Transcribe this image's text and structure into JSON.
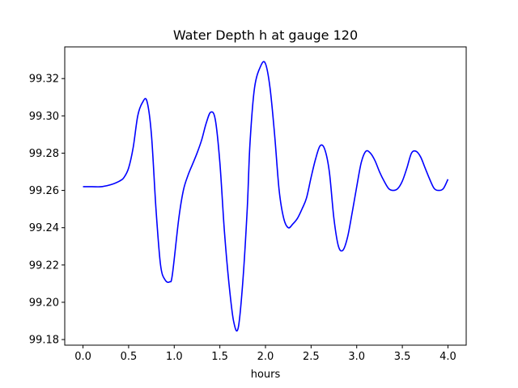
{
  "chart_data": {
    "type": "line",
    "title": "Water Depth h at gauge 120",
    "xlabel": "hours",
    "ylabel": "",
    "xlim": [
      -0.2,
      4.2
    ],
    "ylim": [
      99.177,
      99.337
    ],
    "xticks": [
      0.0,
      0.5,
      1.0,
      1.5,
      2.0,
      2.5,
      3.0,
      3.5,
      4.0
    ],
    "xtick_labels": [
      "0.0",
      "0.5",
      "1.0",
      "1.5",
      "2.0",
      "2.5",
      "3.0",
      "3.5",
      "4.0"
    ],
    "yticks": [
      99.18,
      99.2,
      99.22,
      99.24,
      99.26,
      99.28,
      99.3,
      99.32
    ],
    "ytick_labels": [
      "99.18",
      "99.20",
      "99.22",
      "99.24",
      "99.26",
      "99.28",
      "99.30",
      "99.32"
    ],
    "grid": false,
    "line_color": "#0000ff",
    "series": [
      {
        "x": [
          0.0,
          0.1,
          0.2,
          0.3,
          0.4,
          0.45,
          0.5,
          0.55,
          0.6,
          0.65,
          0.7,
          0.75,
          0.8,
          0.85,
          0.9,
          0.95,
          0.98,
          1.05,
          1.1,
          1.15,
          1.2,
          1.25,
          1.3,
          1.35,
          1.4,
          1.45,
          1.5,
          1.55,
          1.6,
          1.65,
          1.7,
          1.75,
          1.8,
          1.83,
          1.88,
          1.95,
          2.0,
          2.05,
          2.1,
          2.15,
          2.2,
          2.25,
          2.3,
          2.35,
          2.4,
          2.45,
          2.5,
          2.55,
          2.6,
          2.65,
          2.7,
          2.75,
          2.8,
          2.85,
          2.9,
          2.95,
          3.0,
          3.05,
          3.1,
          3.15,
          3.2,
          3.25,
          3.3,
          3.35,
          3.4,
          3.45,
          3.5,
          3.55,
          3.6,
          3.65,
          3.7,
          3.75,
          3.8,
          3.85,
          3.9,
          3.95,
          4.0
        ],
        "y": [
          99.262,
          99.262,
          99.262,
          99.263,
          99.265,
          99.267,
          99.272,
          99.283,
          99.3,
          99.307,
          99.308,
          99.29,
          99.25,
          99.22,
          99.212,
          99.211,
          99.215,
          99.245,
          99.26,
          99.268,
          99.274,
          99.28,
          99.287,
          99.296,
          99.302,
          99.298,
          99.275,
          99.238,
          99.21,
          99.19,
          99.186,
          99.21,
          99.25,
          99.285,
          99.315,
          99.327,
          99.328,
          99.315,
          99.29,
          99.26,
          99.245,
          99.24,
          99.242,
          99.245,
          99.25,
          99.256,
          99.267,
          99.277,
          99.284,
          99.282,
          99.27,
          99.245,
          99.23,
          99.228,
          99.235,
          99.248,
          99.262,
          99.275,
          99.281,
          99.28,
          99.276,
          99.27,
          99.265,
          99.261,
          99.26,
          99.261,
          99.265,
          99.272,
          99.28,
          99.281,
          99.278,
          99.272,
          99.266,
          99.261,
          99.26,
          99.261,
          99.266
        ]
      }
    ]
  }
}
